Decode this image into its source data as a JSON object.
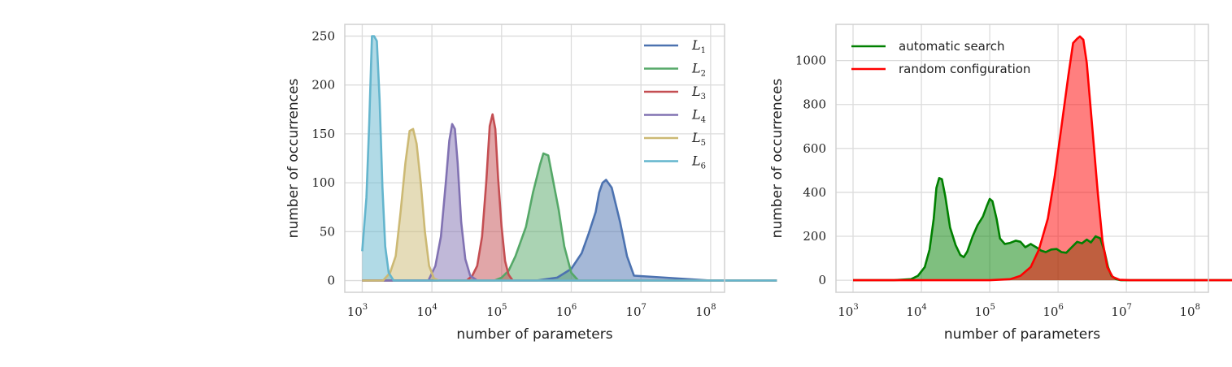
{
  "colors": {
    "L1": "#4c72b0",
    "L2": "#55a868",
    "L3": "#c44e52",
    "L4": "#8172b2",
    "L5": "#ccb974",
    "L6": "#64b5cd",
    "automatic": "#008000",
    "random": "#ff0000",
    "grid": "#dcdcdc",
    "frame": "#d0d0d0"
  },
  "chart_data": [
    {
      "type": "area",
      "xscale": "log",
      "xlabel": "number of parameters",
      "ylabel": "number of occurrences",
      "xlim_log10": [
        2.75,
        8.2
      ],
      "ylim": [
        -12,
        262
      ],
      "xticks": [
        {
          "base": "10",
          "exp": "3",
          "v": 3
        },
        {
          "base": "10",
          "exp": "4",
          "v": 4
        },
        {
          "base": "10",
          "exp": "5",
          "v": 5
        },
        {
          "base": "10",
          "exp": "6",
          "v": 6
        },
        {
          "base": "10",
          "exp": "7",
          "v": 7
        },
        {
          "base": "10",
          "exp": "8",
          "v": 8
        }
      ],
      "yticks": [
        0,
        50,
        100,
        150,
        200,
        250
      ],
      "legend_position": "top-right",
      "series": [
        {
          "key": "L1",
          "name": "L",
          "sub": "1",
          "log10_x": [
            3.0,
            5.5,
            5.8,
            6.0,
            6.15,
            6.25,
            6.35,
            6.4,
            6.45,
            6.5,
            6.58,
            6.7,
            6.8,
            6.9,
            8.0,
            8.95
          ],
          "y": [
            0,
            0,
            3,
            12,
            28,
            48,
            70,
            90,
            100,
            103,
            95,
            60,
            25,
            5,
            0,
            0
          ]
        },
        {
          "key": "L2",
          "name": "L",
          "sub": "2",
          "log10_x": [
            3.0,
            4.9,
            5.0,
            5.1,
            5.2,
            5.35,
            5.45,
            5.55,
            5.6,
            5.67,
            5.75,
            5.82,
            5.9,
            6.0,
            6.1,
            8.95
          ],
          "y": [
            0,
            0,
            3,
            10,
            25,
            55,
            90,
            118,
            130,
            128,
            98,
            72,
            35,
            8,
            0,
            0
          ]
        },
        {
          "key": "L3",
          "name": "L",
          "sub": "3",
          "log10_x": [
            3.0,
            4.5,
            4.58,
            4.65,
            4.72,
            4.78,
            4.83,
            4.87,
            4.91,
            4.95,
            5.0,
            5.05,
            5.1,
            5.16,
            5.25,
            8.95
          ],
          "y": [
            0,
            0,
            5,
            15,
            45,
            100,
            158,
            170,
            155,
            105,
            55,
            20,
            6,
            0,
            0,
            0
          ]
        },
        {
          "key": "L4",
          "name": "L",
          "sub": "4",
          "log10_x": [
            3.0,
            3.95,
            4.05,
            4.13,
            4.2,
            4.25,
            4.29,
            4.33,
            4.37,
            4.42,
            4.48,
            4.55,
            4.65,
            8.95
          ],
          "y": [
            0,
            0,
            15,
            45,
            100,
            143,
            160,
            155,
            120,
            60,
            22,
            5,
            0,
            0
          ]
        },
        {
          "key": "L5",
          "name": "L",
          "sub": "5",
          "log10_x": [
            3.0,
            3.3,
            3.4,
            3.48,
            3.55,
            3.62,
            3.68,
            3.73,
            3.78,
            3.84,
            3.9,
            3.96,
            4.03,
            4.1,
            8.95
          ],
          "y": [
            0,
            0,
            8,
            25,
            70,
            120,
            153,
            155,
            140,
            100,
            50,
            15,
            2,
            0,
            0
          ]
        },
        {
          "key": "L6",
          "name": "L",
          "sub": "6",
          "log10_x": [
            3.0,
            3.06,
            3.1,
            3.14,
            3.17,
            3.21,
            3.25,
            3.29,
            3.33,
            3.38,
            3.45,
            3.55,
            8.95
          ],
          "y": [
            30,
            85,
            160,
            250,
            250,
            245,
            185,
            95,
            35,
            8,
            0,
            0,
            0
          ]
        }
      ]
    },
    {
      "type": "area",
      "xscale": "log",
      "xlabel": "number of parameters",
      "ylabel": "number of occurrences",
      "xlim_log10": [
        2.75,
        8.2
      ],
      "ylim": [
        -55,
        1165
      ],
      "xticks": [
        {
          "base": "10",
          "exp": "3",
          "v": 3
        },
        {
          "base": "10",
          "exp": "4",
          "v": 4
        },
        {
          "base": "10",
          "exp": "5",
          "v": 5
        },
        {
          "base": "10",
          "exp": "6",
          "v": 6
        },
        {
          "base": "10",
          "exp": "7",
          "v": 7
        },
        {
          "base": "10",
          "exp": "8",
          "v": 8
        }
      ],
      "yticks": [
        0,
        200,
        400,
        600,
        800,
        1000
      ],
      "legend_position": "top-left",
      "series": [
        {
          "key": "automatic",
          "name": "automatic search",
          "log10_x": [
            3.0,
            3.6,
            3.85,
            3.95,
            4.05,
            4.12,
            4.18,
            4.22,
            4.26,
            4.3,
            4.35,
            4.42,
            4.5,
            4.57,
            4.62,
            4.67,
            4.75,
            4.82,
            4.9,
            4.96,
            5.0,
            5.04,
            5.1,
            5.15,
            5.22,
            5.3,
            5.38,
            5.45,
            5.52,
            5.6,
            5.68,
            5.75,
            5.82,
            5.9,
            5.98,
            6.05,
            6.12,
            6.2,
            6.28,
            6.35,
            6.42,
            6.48,
            6.55,
            6.62,
            6.68,
            6.73,
            6.78,
            6.85,
            6.92,
            7.0,
            7.15,
            8.95
          ],
          "y": [
            0,
            0,
            5,
            20,
            60,
            140,
            280,
            420,
            465,
            460,
            380,
            240,
            160,
            115,
            105,
            130,
            200,
            250,
            290,
            340,
            370,
            360,
            280,
            190,
            165,
            170,
            180,
            175,
            150,
            165,
            150,
            135,
            128,
            140,
            142,
            128,
            125,
            150,
            175,
            168,
            185,
            172,
            200,
            190,
            130,
            60,
            20,
            5,
            0,
            0,
            0,
            0
          ]
        },
        {
          "key": "random",
          "name": "random configuration",
          "log10_x": [
            3.0,
            5.0,
            5.3,
            5.45,
            5.6,
            5.72,
            5.85,
            5.95,
            6.05,
            6.15,
            6.22,
            6.28,
            6.32,
            6.37,
            6.42,
            6.5,
            6.58,
            6.65,
            6.72,
            6.8,
            6.9,
            7.05,
            8.95
          ],
          "y": [
            0,
            0,
            5,
            20,
            60,
            140,
            280,
            470,
            700,
            930,
            1080,
            1100,
            1110,
            1095,
            990,
            700,
            400,
            180,
            60,
            15,
            2,
            0,
            0
          ]
        }
      ]
    }
  ]
}
